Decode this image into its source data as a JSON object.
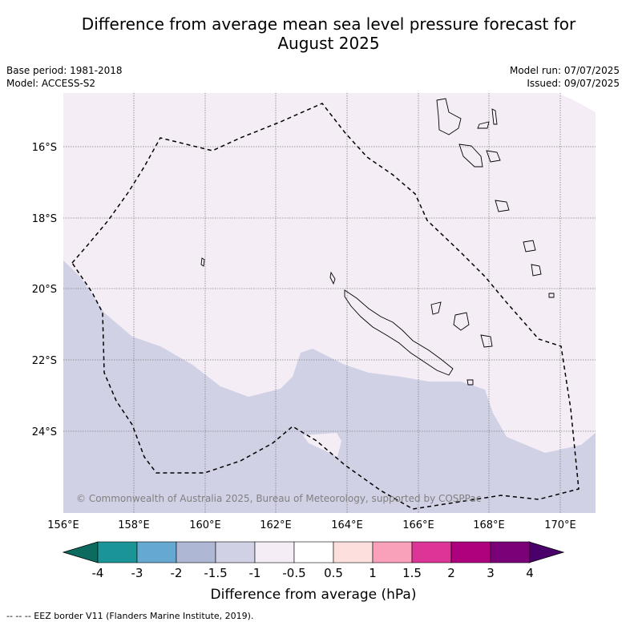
{
  "title_line1": "Difference from average mean sea level pressure forecast for",
  "title_line2": "August 2025",
  "base_period": "Base period: 1981-2018",
  "model": "Model: ACCESS-S2",
  "model_run": "Model run: 07/07/2025",
  "issued": "Issued: 09/07/2025",
  "lat_labels": [
    "16°S",
    "18°S",
    "20°S",
    "22°S",
    "24°S"
  ],
  "lon_labels": [
    "156°E",
    "158°E",
    "160°E",
    "162°E",
    "164°E",
    "166°E",
    "168°E",
    "170°E"
  ],
  "credit": "© Commonwealth of Australia 2025, Bureau of Meteorology, supported by COSPPac",
  "colorbar": {
    "labels": [
      "-4",
      "-3",
      "-2",
      "-1.5",
      "-1",
      "-0.5",
      "0.5",
      "1",
      "1.5",
      "2",
      "3",
      "4"
    ],
    "colors": [
      "#1a9496",
      "#66a9d0",
      "#aeb8d4",
      "#d1d1e6",
      "#f4edf5",
      "#ffffff",
      "#fde0de",
      "#f9a0bb",
      "#dd3497",
      "#ae017e",
      "#7a0177"
    ],
    "under_color": "#0c6b5e",
    "over_color": "#49006a",
    "title": "Difference from average (hPa)"
  },
  "field_colors": {
    "light": "#f4edf5",
    "dark": "#d1d1e6"
  },
  "footer": "--  --  -- EEZ border V11 (Flanders Marine Institute, 2019)."
}
